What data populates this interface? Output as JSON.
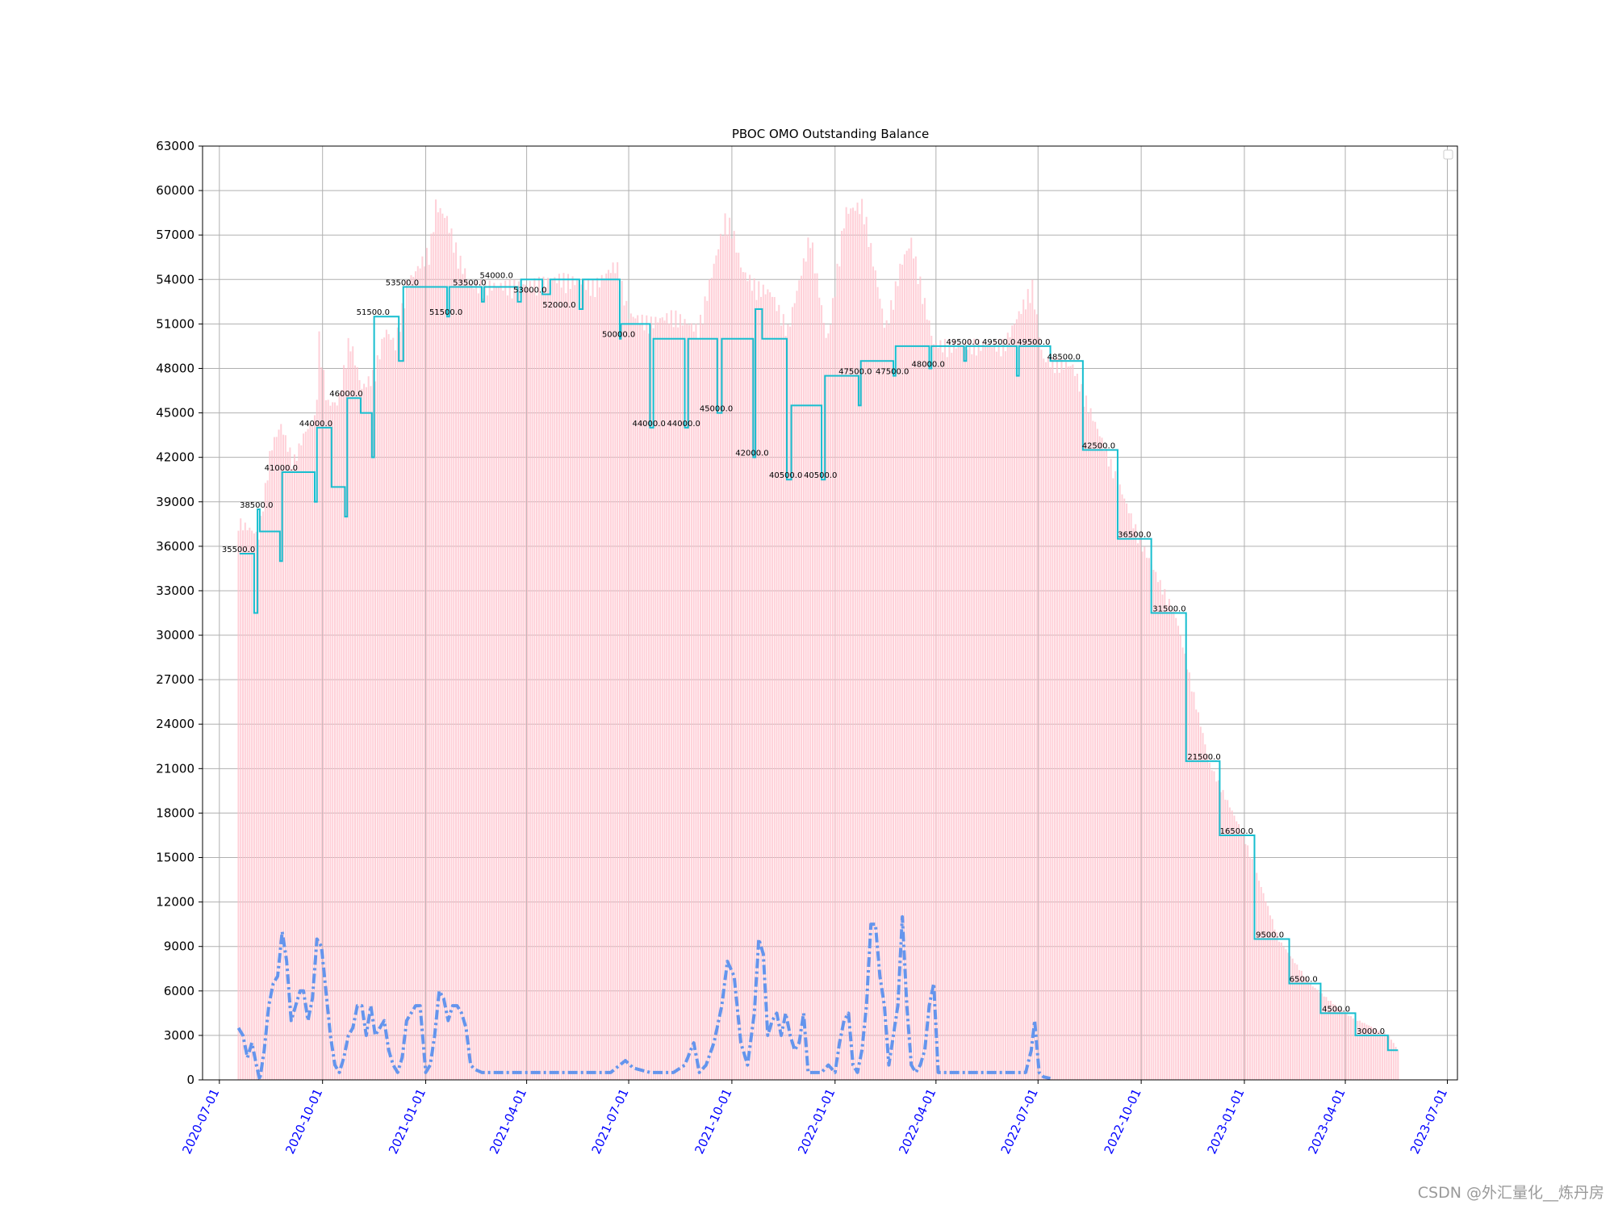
{
  "chart_data": {
    "type": "line",
    "title": "PBOC OMO Outstanding Balance",
    "xlabel": "",
    "ylabel": "",
    "ylim": [
      0,
      63000
    ],
    "y_ticks": [
      0,
      3000,
      6000,
      9000,
      12000,
      15000,
      18000,
      21000,
      24000,
      27000,
      30000,
      33000,
      36000,
      39000,
      42000,
      45000,
      48000,
      51000,
      54000,
      57000,
      60000,
      63000
    ],
    "x_range": [
      "2020-06-16",
      "2023-07-10"
    ],
    "x_ticks": [
      "2020-07-01",
      "2020-10-01",
      "2021-01-01",
      "2021-04-01",
      "2021-07-01",
      "2021-10-01",
      "2022-01-01",
      "2022-04-01",
      "2022-07-01",
      "2022-10-01",
      "2023-01-01",
      "2023-04-01",
      "2023-07-01"
    ],
    "x_tick_color": "#0000ff",
    "grid": true,
    "legend": "top-right (empty)",
    "series_balance_step": {
      "color": "#17becf",
      "points": [
        [
          "2020-07-19",
          35500
        ],
        [
          "2020-08-01",
          31500
        ],
        [
          "2020-08-04",
          38500
        ],
        [
          "2020-08-06",
          37000
        ],
        [
          "2020-08-24",
          35000
        ],
        [
          "2020-08-26",
          41000
        ],
        [
          "2020-09-24",
          39000
        ],
        [
          "2020-09-26",
          44000
        ],
        [
          "2020-10-09",
          40000
        ],
        [
          "2020-10-21",
          38000
        ],
        [
          "2020-10-23",
          46000
        ],
        [
          "2020-11-04",
          45000
        ],
        [
          "2020-11-14",
          42000
        ],
        [
          "2020-11-16",
          51500
        ],
        [
          "2020-12-08",
          48500
        ],
        [
          "2020-12-12",
          53500
        ],
        [
          "2021-01-20",
          51500
        ],
        [
          "2021-01-22",
          53500
        ],
        [
          "2021-02-20",
          52500
        ],
        [
          "2021-02-22",
          53500
        ],
        [
          "2021-03-24",
          52500
        ],
        [
          "2021-03-27",
          54000
        ],
        [
          "2021-04-15",
          53000
        ],
        [
          "2021-04-22",
          54000
        ],
        [
          "2021-05-18",
          52000
        ],
        [
          "2021-05-21",
          54000
        ],
        [
          "2021-06-23",
          50000
        ],
        [
          "2021-06-24",
          51000
        ],
        [
          "2021-07-20",
          44000
        ],
        [
          "2021-07-23",
          50000
        ],
        [
          "2021-08-20",
          44000
        ],
        [
          "2021-08-23",
          50000
        ],
        [
          "2021-09-18",
          45000
        ],
        [
          "2021-09-22",
          50000
        ],
        [
          "2021-10-20",
          42000
        ],
        [
          "2021-10-22",
          52000
        ],
        [
          "2021-10-28",
          50000
        ],
        [
          "2021-11-19",
          40500
        ],
        [
          "2021-11-23",
          45500
        ],
        [
          "2021-12-20",
          40500
        ],
        [
          "2021-12-23",
          47500
        ],
        [
          "2022-01-22",
          45500
        ],
        [
          "2022-01-24",
          48500
        ],
        [
          "2022-02-22",
          47500
        ],
        [
          "2022-02-24",
          49500
        ],
        [
          "2022-03-26",
          48000
        ],
        [
          "2022-03-28",
          49500
        ],
        [
          "2022-04-26",
          48500
        ],
        [
          "2022-04-28",
          49500
        ],
        [
          "2022-06-12",
          47500
        ],
        [
          "2022-06-14",
          49500
        ],
        [
          "2022-07-12",
          48500
        ],
        [
          "2022-08-10",
          42500
        ],
        [
          "2022-09-10",
          36500
        ],
        [
          "2022-10-10",
          31500
        ],
        [
          "2022-11-10",
          21500
        ],
        [
          "2022-12-10",
          16500
        ],
        [
          "2023-01-10",
          9500
        ],
        [
          "2023-02-10",
          6500
        ],
        [
          "2023-03-10",
          4500
        ],
        [
          "2023-04-10",
          3000
        ],
        [
          "2023-05-09",
          2000
        ],
        [
          "2023-05-18",
          2000
        ]
      ]
    },
    "series_daily_bars": {
      "color": "#ffc0cb",
      "points": [
        [
          "2020-07-18",
          38000
        ],
        [
          "2020-08-05",
          37000
        ],
        [
          "2020-08-16",
          43000
        ],
        [
          "2020-08-25",
          44500
        ],
        [
          "2020-09-05",
          42000
        ],
        [
          "2020-09-15",
          44000
        ],
        [
          "2020-09-25",
          45000
        ],
        [
          "2020-09-28",
          50500
        ],
        [
          "2020-10-05",
          46000
        ],
        [
          "2020-10-15",
          46000
        ],
        [
          "2020-10-25",
          50500
        ],
        [
          "2020-11-05",
          47000
        ],
        [
          "2020-11-16",
          48000
        ],
        [
          "2020-11-26",
          51000
        ],
        [
          "2020-12-05",
          50000
        ],
        [
          "2020-12-15",
          54000
        ],
        [
          "2021-01-05",
          56500
        ],
        [
          "2021-01-10",
          59500
        ],
        [
          "2021-01-20",
          58500
        ],
        [
          "2021-01-30",
          56000
        ],
        [
          "2021-02-10",
          54000
        ],
        [
          "2021-03-01",
          54000
        ],
        [
          "2021-04-01",
          54000
        ],
        [
          "2021-05-01",
          54500
        ],
        [
          "2021-06-01",
          54000
        ],
        [
          "2021-06-20",
          55500
        ],
        [
          "2021-07-01",
          52000
        ],
        [
          "2021-07-20",
          51500
        ],
        [
          "2021-08-10",
          52000
        ],
        [
          "2021-09-01",
          51000
        ],
        [
          "2021-09-25",
          58500
        ],
        [
          "2021-10-01",
          58000
        ],
        [
          "2021-10-10",
          55000
        ],
        [
          "2021-10-22",
          54000
        ],
        [
          "2021-11-05",
          53500
        ],
        [
          "2021-11-20",
          51000
        ],
        [
          "2021-12-10",
          57500
        ],
        [
          "2021-12-25",
          50000
        ],
        [
          "2022-01-10",
          59000
        ],
        [
          "2022-01-26",
          59500
        ],
        [
          "2022-02-15",
          51000
        ],
        [
          "2022-03-01",
          55500
        ],
        [
          "2022-03-10",
          57000
        ],
        [
          "2022-03-30",
          50000
        ],
        [
          "2022-04-30",
          50000
        ],
        [
          "2022-06-01",
          50000
        ],
        [
          "2022-06-26",
          54000
        ],
        [
          "2022-07-05",
          49000
        ],
        [
          "2022-08-01",
          48500
        ],
        [
          "2022-09-01",
          42500
        ],
        [
          "2022-10-01",
          36500
        ],
        [
          "2022-11-01",
          31500
        ],
        [
          "2022-12-01",
          21500
        ],
        [
          "2023-01-01",
          16500
        ],
        [
          "2023-02-01",
          9500
        ],
        [
          "2023-03-01",
          6500
        ],
        [
          "2023-04-01",
          4500
        ],
        [
          "2023-05-10",
          3000
        ],
        [
          "2023-05-18",
          2000
        ]
      ]
    },
    "series_dashdot": {
      "color": "#6495ed",
      "style": "dash-dot",
      "points": [
        [
          "2020-07-18",
          3500
        ],
        [
          "2020-07-22",
          3000
        ],
        [
          "2020-07-26",
          1500
        ],
        [
          "2020-07-30",
          2500
        ],
        [
          "2020-08-03",
          1000
        ],
        [
          "2020-08-06",
          0
        ],
        [
          "2020-08-10",
          2000
        ],
        [
          "2020-08-14",
          5000
        ],
        [
          "2020-08-18",
          6500
        ],
        [
          "2020-08-22",
          7000
        ],
        [
          "2020-08-26",
          10000
        ],
        [
          "2020-08-30",
          8000
        ],
        [
          "2020-09-03",
          4000
        ],
        [
          "2020-09-07",
          5000
        ],
        [
          "2020-09-11",
          6000
        ],
        [
          "2020-09-14",
          6000
        ],
        [
          "2020-09-18",
          4000
        ],
        [
          "2020-09-22",
          5500
        ],
        [
          "2020-09-26",
          9500
        ],
        [
          "2020-09-30",
          9000
        ],
        [
          "2020-10-04",
          6000
        ],
        [
          "2020-10-08",
          3000
        ],
        [
          "2020-10-12",
          1000
        ],
        [
          "2020-10-16",
          500
        ],
        [
          "2020-10-20",
          1500
        ],
        [
          "2020-10-24",
          3000
        ],
        [
          "2020-10-28",
          3500
        ],
        [
          "2020-11-01",
          5000
        ],
        [
          "2020-11-05",
          5000
        ],
        [
          "2020-11-09",
          3000
        ],
        [
          "2020-11-13",
          5000
        ],
        [
          "2020-11-17",
          3000
        ],
        [
          "2020-11-21",
          3500
        ],
        [
          "2020-11-25",
          4000
        ],
        [
          "2020-11-29",
          2000
        ],
        [
          "2020-12-03",
          1000
        ],
        [
          "2020-12-07",
          500
        ],
        [
          "2020-12-11",
          1500
        ],
        [
          "2020-12-15",
          4000
        ],
        [
          "2020-12-19",
          4500
        ],
        [
          "2020-12-23",
          5000
        ],
        [
          "2020-12-27",
          5000
        ],
        [
          "2021-01-01",
          500
        ],
        [
          "2021-01-05",
          1000
        ],
        [
          "2021-01-09",
          3000
        ],
        [
          "2021-01-13",
          6000
        ],
        [
          "2021-01-17",
          5500
        ],
        [
          "2021-01-21",
          4000
        ],
        [
          "2021-01-25",
          5000
        ],
        [
          "2021-01-29",
          5000
        ],
        [
          "2021-02-02",
          4500
        ],
        [
          "2021-02-06",
          3500
        ],
        [
          "2021-02-10",
          1000
        ],
        [
          "2021-02-14",
          700
        ],
        [
          "2021-02-20",
          500
        ],
        [
          "2021-03-10",
          500
        ],
        [
          "2021-04-01",
          500
        ],
        [
          "2021-05-01",
          500
        ],
        [
          "2021-06-15",
          500
        ],
        [
          "2021-06-28",
          1300
        ],
        [
          "2021-07-05",
          800
        ],
        [
          "2021-07-20",
          500
        ],
        [
          "2021-08-10",
          500
        ],
        [
          "2021-08-20",
          1000
        ],
        [
          "2021-08-28",
          2500
        ],
        [
          "2021-09-02",
          500
        ],
        [
          "2021-09-08",
          1000
        ],
        [
          "2021-09-15",
          2500
        ],
        [
          "2021-09-22",
          5000
        ],
        [
          "2021-09-27",
          8000
        ],
        [
          "2021-10-03",
          7000
        ],
        [
          "2021-10-09",
          2500
        ],
        [
          "2021-10-15",
          1000
        ],
        [
          "2021-10-21",
          4500
        ],
        [
          "2021-10-25",
          9500
        ],
        [
          "2021-10-29",
          8500
        ],
        [
          "2021-11-02",
          3000
        ],
        [
          "2021-11-06",
          4000
        ],
        [
          "2021-11-10",
          4500
        ],
        [
          "2021-11-14",
          3000
        ],
        [
          "2021-11-18",
          4500
        ],
        [
          "2021-11-22",
          3000
        ],
        [
          "2021-11-26",
          2000
        ],
        [
          "2021-11-30",
          2500
        ],
        [
          "2021-12-04",
          4500
        ],
        [
          "2021-12-08",
          500
        ],
        [
          "2021-12-14",
          500
        ],
        [
          "2021-12-20",
          500
        ],
        [
          "2021-12-26",
          1000
        ],
        [
          "2022-01-01",
          500
        ],
        [
          "2022-01-05",
          2500
        ],
        [
          "2022-01-09",
          4000
        ],
        [
          "2022-01-13",
          4500
        ],
        [
          "2022-01-17",
          1000
        ],
        [
          "2022-01-21",
          500
        ],
        [
          "2022-01-25",
          2000
        ],
        [
          "2022-01-29",
          5000
        ],
        [
          "2022-02-02",
          10500
        ],
        [
          "2022-02-06",
          10500
        ],
        [
          "2022-02-10",
          7000
        ],
        [
          "2022-02-14",
          5000
        ],
        [
          "2022-02-18",
          1000
        ],
        [
          "2022-02-22",
          3000
        ],
        [
          "2022-02-26",
          5000
        ],
        [
          "2022-03-02",
          11000
        ],
        [
          "2022-03-06",
          5000
        ],
        [
          "2022-03-10",
          1000
        ],
        [
          "2022-03-14",
          500
        ],
        [
          "2022-03-18",
          1000
        ],
        [
          "2022-03-22",
          2000
        ],
        [
          "2022-03-26",
          5000
        ],
        [
          "2022-03-30",
          6500
        ],
        [
          "2022-04-03",
          500
        ],
        [
          "2022-04-10",
          500
        ],
        [
          "2022-05-01",
          500
        ],
        [
          "2022-05-20",
          500
        ],
        [
          "2022-06-20",
          500
        ],
        [
          "2022-06-25",
          2000
        ],
        [
          "2022-06-28",
          4000
        ],
        [
          "2022-07-02",
          500
        ],
        [
          "2022-07-06",
          200
        ],
        [
          "2022-07-12",
          100
        ]
      ]
    },
    "point_labels": [
      {
        "date": "2020-07-19",
        "value": 35500,
        "text": "35500.0"
      },
      {
        "date": "2020-08-04",
        "value": 38500,
        "text": "38500.0"
      },
      {
        "date": "2020-08-26",
        "value": 41000,
        "text": "41000.0"
      },
      {
        "date": "2020-09-26",
        "value": 44000,
        "text": "44000.0"
      },
      {
        "date": "2020-10-23",
        "value": 46000,
        "text": "46000.0"
      },
      {
        "date": "2020-11-16",
        "value": 51500,
        "text": "51500.0"
      },
      {
        "date": "2020-12-12",
        "value": 53500,
        "text": "53500.0"
      },
      {
        "date": "2021-01-20",
        "value": 51500,
        "text": "51500.0"
      },
      {
        "date": "2021-02-10",
        "value": 53500,
        "text": "53500.0"
      },
      {
        "date": "2021-03-06",
        "value": 54000,
        "text": "54000.0"
      },
      {
        "date": "2021-04-05",
        "value": 53000,
        "text": "53000.0"
      },
      {
        "date": "2021-05-01",
        "value": 52000,
        "text": "52000.0"
      },
      {
        "date": "2021-06-23",
        "value": 50000,
        "text": "50000.0"
      },
      {
        "date": "2021-07-20",
        "value": 44000,
        "text": "44000.0"
      },
      {
        "date": "2021-08-20",
        "value": 44000,
        "text": "44000.0"
      },
      {
        "date": "2021-09-18",
        "value": 45000,
        "text": "45000.0"
      },
      {
        "date": "2021-10-20",
        "value": 42000,
        "text": "42000.0"
      },
      {
        "date": "2021-11-19",
        "value": 40500,
        "text": "40500.0"
      },
      {
        "date": "2021-12-20",
        "value": 40500,
        "text": "40500.0"
      },
      {
        "date": "2022-01-20",
        "value": 47500,
        "text": "47500.0"
      },
      {
        "date": "2022-02-22",
        "value": 47500,
        "text": "47500.0"
      },
      {
        "date": "2022-03-26",
        "value": 48000,
        "text": "48000.0"
      },
      {
        "date": "2022-04-26",
        "value": 49500,
        "text": "49500.0"
      },
      {
        "date": "2022-05-28",
        "value": 49500,
        "text": "49500.0"
      },
      {
        "date": "2022-06-28",
        "value": 49500,
        "text": "49500.0"
      },
      {
        "date": "2022-07-25",
        "value": 48500,
        "text": "48500.0"
      },
      {
        "date": "2022-08-25",
        "value": 42500,
        "text": "42500.0"
      },
      {
        "date": "2022-09-26",
        "value": 36500,
        "text": "36500.0"
      },
      {
        "date": "2022-10-27",
        "value": 31500,
        "text": "31500.0"
      },
      {
        "date": "2022-11-27",
        "value": 21500,
        "text": "21500.0"
      },
      {
        "date": "2022-12-26",
        "value": 16500,
        "text": "16500.0"
      },
      {
        "date": "2023-01-27",
        "value": 9500,
        "text": "9500.0"
      },
      {
        "date": "2023-02-26",
        "value": 6500,
        "text": "6500.0"
      },
      {
        "date": "2023-03-27",
        "value": 4500,
        "text": "4500.0"
      },
      {
        "date": "2023-04-27",
        "value": 3000,
        "text": "3000.0"
      }
    ]
  },
  "watermark": "CSDN @外汇量化__炼丹房"
}
